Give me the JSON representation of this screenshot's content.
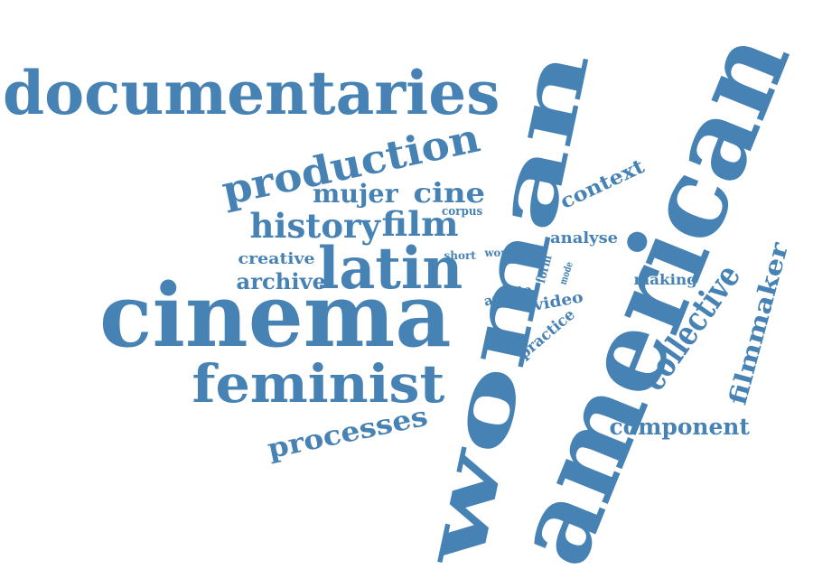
{
  "color": "#4682b4",
  "words": [
    {
      "text": "american"
    },
    {
      "text": "woman"
    },
    {
      "text": "cinema"
    },
    {
      "text": "documentaries"
    },
    {
      "text": "latin"
    },
    {
      "text": "feminist"
    },
    {
      "text": "production"
    },
    {
      "text": "collective"
    },
    {
      "text": "history"
    },
    {
      "text": "film"
    },
    {
      "text": "processes"
    },
    {
      "text": "filmmaker"
    },
    {
      "text": "component"
    },
    {
      "text": "mujer"
    },
    {
      "text": "cine"
    },
    {
      "text": "context"
    },
    {
      "text": "archive"
    },
    {
      "text": "analyse"
    },
    {
      "text": "creative"
    },
    {
      "text": "making"
    },
    {
      "text": "practice"
    },
    {
      "text": "video"
    },
    {
      "text": "article"
    },
    {
      "text": "corpus"
    },
    {
      "text": "form"
    },
    {
      "text": "short"
    },
    {
      "text": "work"
    },
    {
      "text": "role"
    },
    {
      "text": "mode"
    }
  ]
}
